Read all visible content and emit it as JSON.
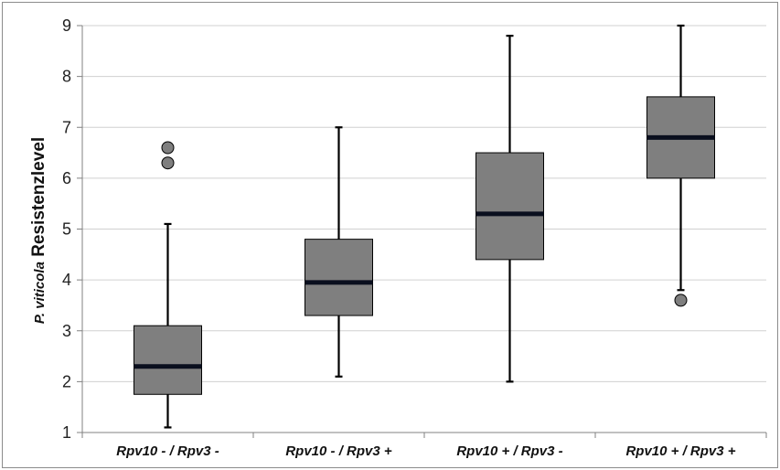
{
  "chart_data": {
    "type": "box",
    "ylabel_italic": "P. viticola",
    "ylabel_rest": " Resistenzlevel",
    "ylim": [
      1,
      9
    ],
    "yticks": [
      1,
      2,
      3,
      4,
      5,
      6,
      7,
      8,
      9
    ],
    "grid": true,
    "categories": [
      "Rpv10 - / Rpv3 -",
      "Rpv10 - / Rpv3 +",
      "Rpv10 + / Rpv3 -",
      "Rpv10 + / Rpv3 +"
    ],
    "boxes": [
      {
        "whisker_low": 1.1,
        "q1": 1.75,
        "median": 2.3,
        "q3": 3.1,
        "whisker_high": 5.1,
        "outliers": [
          6.6,
          6.3
        ]
      },
      {
        "whisker_low": 2.1,
        "q1": 3.3,
        "median": 3.95,
        "q3": 4.8,
        "whisker_high": 7.0,
        "outliers": []
      },
      {
        "whisker_low": 2.0,
        "q1": 4.4,
        "median": 5.3,
        "q3": 6.5,
        "whisker_high": 8.8,
        "outliers": []
      },
      {
        "whisker_low": 3.8,
        "q1": 6.0,
        "median": 6.8,
        "q3": 7.6,
        "whisker_high": 9.0,
        "outliers": [
          3.6
        ]
      }
    ],
    "colors": {
      "box_fill": "#7f7f7f",
      "median": "#0a0f1e",
      "grid": "#d0d0d0",
      "outlier_fill": "#7f7f7f"
    }
  }
}
